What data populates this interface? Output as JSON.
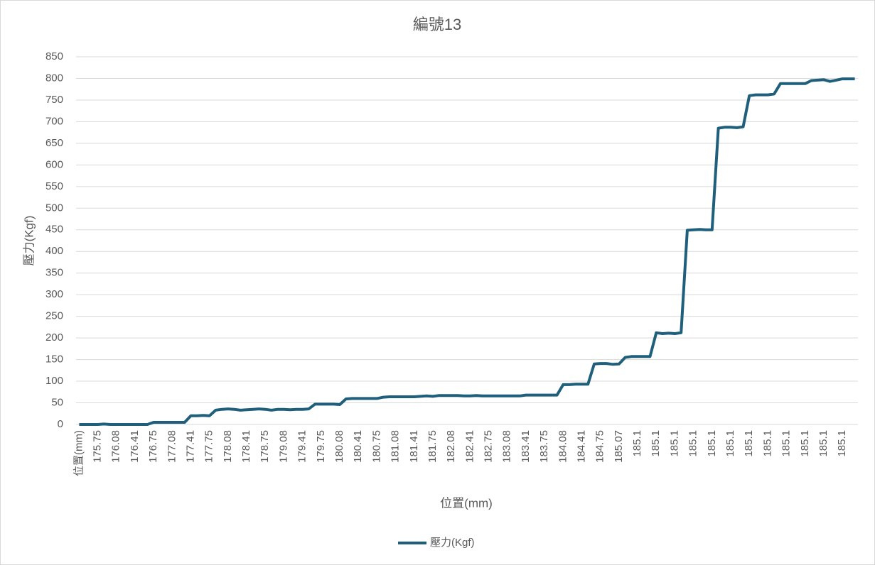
{
  "chart_data": {
    "type": "line",
    "title": "編號13",
    "x_label": "位置(mm)",
    "y_label": "壓力(Kgf)",
    "categories": [
      "位置(mm)",
      null,
      null,
      "175.75",
      null,
      null,
      "176.08",
      null,
      null,
      "176.41",
      null,
      null,
      "176.75",
      null,
      null,
      "177.08",
      null,
      null,
      "177.41",
      null,
      null,
      "177.75",
      null,
      null,
      "178.08",
      null,
      null,
      "178.41",
      null,
      null,
      "178.75",
      null,
      null,
      "179.08",
      null,
      null,
      "179.41",
      null,
      null,
      "179.75",
      null,
      null,
      "180.08",
      null,
      null,
      "180.41",
      null,
      null,
      "180.75",
      null,
      null,
      "181.08",
      null,
      null,
      "181.41",
      null,
      null,
      "181.75",
      null,
      null,
      "182.08",
      null,
      null,
      "182.41",
      null,
      null,
      "182.75",
      null,
      null,
      "183.08",
      null,
      null,
      "183.41",
      null,
      null,
      "183.75",
      null,
      null,
      "184.08",
      null,
      null,
      "184.41",
      null,
      null,
      "184.75",
      null,
      null,
      "185.07",
      null,
      null,
      "185.1",
      null,
      null,
      "185.1",
      null,
      null,
      "185.1",
      null,
      null,
      "185.1",
      null,
      null,
      "185.1",
      null,
      null,
      "185.1",
      null,
      null,
      "185.1",
      null,
      null,
      "185.1",
      null,
      null,
      "185.1",
      null,
      null,
      "185.1",
      null,
      null,
      "185.1",
      null,
      null,
      "185.1",
      null,
      null
    ],
    "series": [
      {
        "name": "壓力(Kgf)",
        "color": "#1f5f7c",
        "values": [
          0,
          0,
          0,
          0,
          1,
          0,
          0,
          0,
          0,
          0,
          0,
          0,
          5,
          5,
          5,
          5,
          5,
          5,
          20,
          20,
          21,
          20,
          33,
          35,
          36,
          35,
          33,
          34,
          35,
          36,
          35,
          33,
          35,
          35,
          34,
          35,
          35,
          36,
          47,
          47,
          47,
          47,
          46,
          59,
          60,
          60,
          60,
          60,
          60,
          63,
          64,
          64,
          64,
          64,
          64,
          65,
          66,
          65,
          67,
          67,
          67,
          67,
          66,
          66,
          67,
          66,
          66,
          66,
          66,
          66,
          66,
          66,
          68,
          68,
          68,
          68,
          68,
          68,
          92,
          92,
          93,
          93,
          93,
          140,
          141,
          141,
          139,
          140,
          155,
          157,
          157,
          157,
          157,
          212,
          210,
          211,
          210,
          212,
          449,
          450,
          451,
          450,
          450,
          685,
          687,
          687,
          686,
          688,
          760,
          762,
          762,
          762,
          764,
          788,
          788,
          788,
          788,
          788,
          795,
          796,
          797,
          793,
          796,
          799,
          799,
          799
        ]
      }
    ],
    "ylim": [
      0,
      850
    ],
    "yticks": [
      0,
      50,
      100,
      150,
      200,
      250,
      300,
      350,
      400,
      450,
      500,
      550,
      600,
      650,
      700,
      750,
      800,
      850
    ],
    "grid": true,
    "legend": "bottom"
  }
}
